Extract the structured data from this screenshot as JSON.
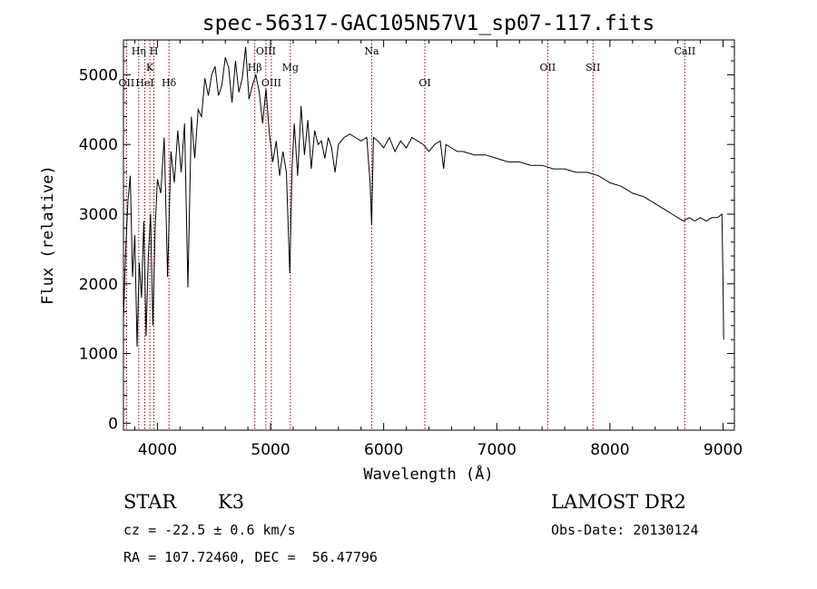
{
  "chart_data": {
    "type": "line",
    "title": "spec-56317-GAC105N57V1_sp07-117.fits",
    "xlabel": "Wavelength (Å)",
    "ylabel": "Flux (relative)",
    "xlim": [
      3700,
      9100
    ],
    "ylim": [
      -100,
      5500
    ],
    "x_ticks": [
      4000,
      5000,
      6000,
      7000,
      8000,
      9000
    ],
    "y_ticks": [
      0,
      1000,
      2000,
      3000,
      4000,
      5000
    ],
    "grid": false,
    "color": "#000000",
    "lines_color": "#8b0000",
    "spectral_lines": [
      {
        "label": "OII",
        "wavelength": 3727,
        "row": 2
      },
      {
        "label": "Hη",
        "wavelength": 3835,
        "row": 0
      },
      {
        "label": "HeI",
        "wavelength": 3889,
        "row": 2
      },
      {
        "label": "K",
        "wavelength": 3934,
        "row": 1
      },
      {
        "label": "H",
        "wavelength": 3969,
        "row": 0
      },
      {
        "label": "Hδ",
        "wavelength": 4102,
        "row": 2
      },
      {
        "label": "Hβ",
        "wavelength": 4861,
        "row": 1
      },
      {
        "label": "OIII",
        "wavelength": 4959,
        "row": 0
      },
      {
        "label": "OIII",
        "wavelength": 5007,
        "row": 2
      },
      {
        "label": "Mg",
        "wavelength": 5175,
        "row": 1
      },
      {
        "label": "Na",
        "wavelength": 5894,
        "row": 0
      },
      {
        "label": "OI",
        "wavelength": 6364,
        "row": 2
      },
      {
        "label": "OII",
        "wavelength": 7450,
        "row": 1
      },
      {
        "label": "SII",
        "wavelength": 7850,
        "row": 1
      },
      {
        "label": "CaII",
        "wavelength": 8662,
        "row": 0
      }
    ],
    "spectrum": {
      "x": [
        3700,
        3720,
        3740,
        3760,
        3780,
        3800,
        3820,
        3840,
        3860,
        3880,
        3900,
        3920,
        3940,
        3960,
        3980,
        4000,
        4030,
        4060,
        4090,
        4120,
        4150,
        4180,
        4210,
        4240,
        4270,
        4300,
        4330,
        4360,
        4390,
        4420,
        4450,
        4480,
        4510,
        4540,
        4570,
        4600,
        4630,
        4660,
        4690,
        4720,
        4750,
        4780,
        4810,
        4840,
        4870,
        4900,
        4930,
        4960,
        4990,
        5020,
        5050,
        5080,
        5110,
        5140,
        5170,
        5190,
        5210,
        5240,
        5270,
        5300,
        5330,
        5360,
        5390,
        5420,
        5450,
        5480,
        5510,
        5540,
        5570,
        5600,
        5650,
        5700,
        5750,
        5800,
        5850,
        5880,
        5894,
        5910,
        5950,
        6000,
        6050,
        6100,
        6150,
        6200,
        6250,
        6300,
        6350,
        6400,
        6450,
        6500,
        6530,
        6550,
        6600,
        6650,
        6700,
        6800,
        6900,
        7000,
        7100,
        7200,
        7300,
        7400,
        7500,
        7600,
        7700,
        7800,
        7900,
        8000,
        8100,
        8200,
        8300,
        8400,
        8500,
        8550,
        8600,
        8650,
        8700,
        8750,
        8800,
        8850,
        8900,
        8950,
        8990,
        9000,
        9005
      ],
      "y": [
        1500,
        2500,
        3200,
        3550,
        2100,
        2700,
        1100,
        2300,
        1800,
        2900,
        1250,
        2400,
        3000,
        1400,
        2800,
        3500,
        3300,
        4100,
        2100,
        3900,
        3450,
        4200,
        3600,
        4300,
        1950,
        4400,
        3800,
        4500,
        4400,
        4950,
        4700,
        5000,
        5120,
        4700,
        4850,
        5250,
        5100,
        4600,
        5200,
        4750,
        4950,
        5400,
        4650,
        4850,
        5000,
        4750,
        4300,
        4800,
        4150,
        3750,
        4050,
        3550,
        3900,
        3600,
        2150,
        3650,
        4300,
        3550,
        4550,
        3850,
        4350,
        3650,
        4200,
        4000,
        4050,
        3800,
        4100,
        3950,
        3600,
        4000,
        4100,
        4150,
        4100,
        4050,
        4100,
        3450,
        2850,
        4100,
        4050,
        3950,
        4100,
        3900,
        4050,
        3950,
        4100,
        4050,
        4000,
        3900,
        4000,
        4050,
        3650,
        4000,
        3950,
        3900,
        3900,
        3850,
        3850,
        3800,
        3750,
        3750,
        3700,
        3700,
        3650,
        3650,
        3600,
        3600,
        3550,
        3450,
        3400,
        3300,
        3250,
        3150,
        3050,
        3000,
        2950,
        2900,
        2950,
        2900,
        2950,
        2900,
        2950,
        2950,
        3000,
        2000,
        1200
      ]
    }
  },
  "info": {
    "class": "STAR",
    "subclass": "K3",
    "survey": "LAMOST DR2",
    "cz": "cz = -22.5 ± 0.6 km/s",
    "obsdate": "Obs-Date: 20130124",
    "radec": "RA = 107.72460, DEC =  56.47796"
  }
}
